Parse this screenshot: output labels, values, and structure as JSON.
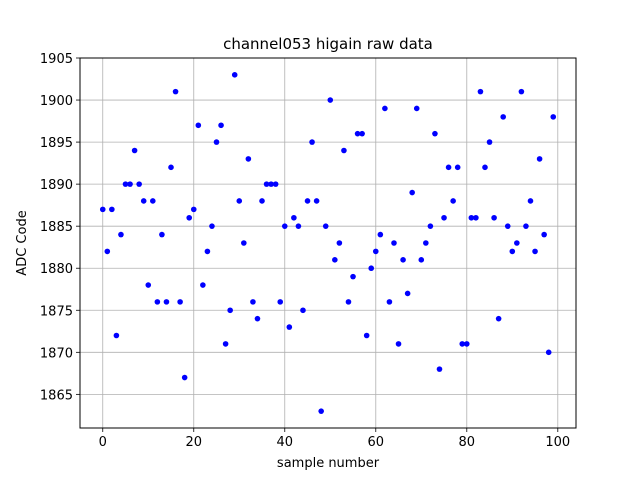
{
  "chart_data": {
    "type": "scatter",
    "title": "channel053 higain raw data",
    "xlabel": "sample number",
    "ylabel": "ADC Code",
    "xlim": [
      -5,
      104
    ],
    "ylim": [
      1861,
      1905
    ],
    "xticks": [
      0,
      20,
      40,
      60,
      80,
      100
    ],
    "yticks": [
      1865,
      1870,
      1875,
      1880,
      1885,
      1890,
      1895,
      1900,
      1905
    ],
    "grid": true,
    "marker_color": "#0000ff",
    "x": [
      0,
      1,
      2,
      3,
      4,
      5,
      6,
      7,
      8,
      9,
      10,
      11,
      12,
      13,
      14,
      15,
      16,
      17,
      18,
      19,
      20,
      21,
      22,
      23,
      24,
      25,
      26,
      27,
      28,
      29,
      30,
      31,
      32,
      33,
      34,
      35,
      36,
      37,
      38,
      39,
      40,
      41,
      42,
      43,
      44,
      45,
      46,
      47,
      48,
      49,
      50,
      51,
      52,
      53,
      54,
      55,
      56,
      57,
      58,
      59,
      60,
      61,
      62,
      63,
      64,
      65,
      66,
      67,
      68,
      69,
      70,
      71,
      72,
      73,
      74,
      75,
      76,
      77,
      78,
      79,
      80,
      81,
      82,
      83,
      84,
      85,
      86,
      87,
      88,
      89,
      90,
      91,
      92,
      93,
      94,
      95,
      96,
      97,
      98,
      99
    ],
    "y": [
      1887,
      1882,
      1887,
      1872,
      1884,
      1890,
      1890,
      1894,
      1890,
      1888,
      1878,
      1888,
      1876,
      1884,
      1876,
      1892,
      1901,
      1876,
      1867,
      1886,
      1887,
      1897,
      1878,
      1882,
      1885,
      1895,
      1897,
      1871,
      1875,
      1903,
      1888,
      1883,
      1893,
      1876,
      1874,
      1888,
      1890,
      1890,
      1890,
      1876,
      1885,
      1873,
      1886,
      1885,
      1875,
      1888,
      1895,
      1888,
      1863,
      1885,
      1900,
      1881,
      1883,
      1894,
      1876,
      1879,
      1896,
      1896,
      1872,
      1880,
      1882,
      1884,
      1899,
      1876,
      1883,
      1871,
      1881,
      1877,
      1889,
      1899,
      1881,
      1883,
      1885,
      1896,
      1868,
      1886,
      1892,
      1888,
      1892,
      1871,
      1871,
      1886,
      1886,
      1901,
      1892,
      1895,
      1886,
      1874,
      1898,
      1885,
      1882,
      1883,
      1901,
      1885,
      1888,
      1882,
      1893,
      1884,
      1870,
      1898
    ]
  }
}
